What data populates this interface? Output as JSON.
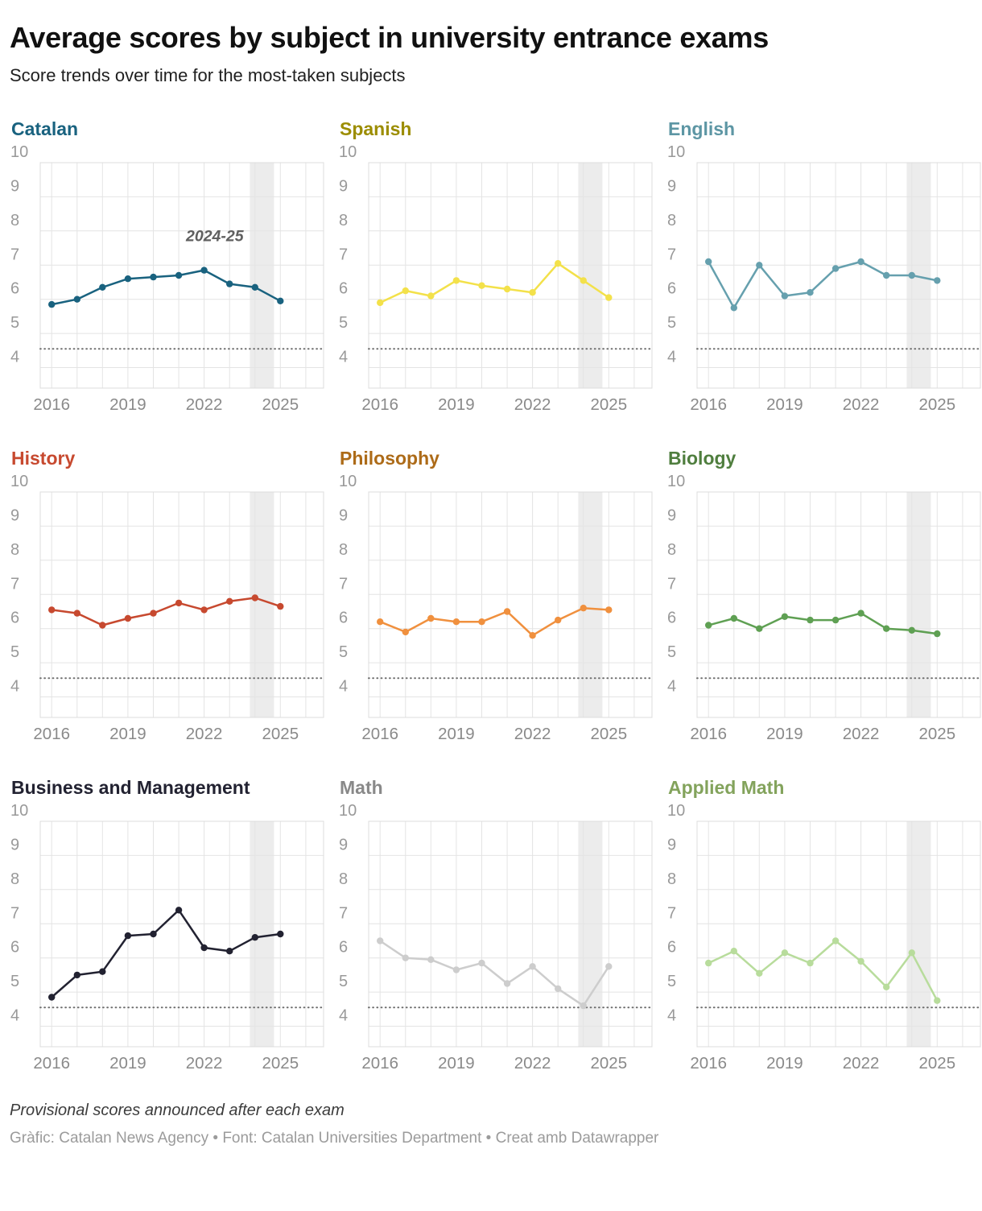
{
  "header": {
    "title": "Average scores by subject in university entrance exams",
    "subtitle": "Score trends over time for the most-taken subjects"
  },
  "footer": {
    "note": "Provisional scores announced after each exam",
    "credit": "Gràfic: Catalan News Agency • Font: Catalan Universities Department • Creat amb Datawrapper"
  },
  "chart_data": {
    "type": "line",
    "x": [
      2016,
      2017,
      2018,
      2019,
      2020,
      2021,
      2022,
      2023,
      2024,
      2025
    ],
    "x_ticks": [
      2016,
      2019,
      2022,
      2025
    ],
    "y_ticks": [
      4,
      5,
      6,
      7,
      8,
      9,
      10
    ],
    "ylim": [
      3.4,
      10
    ],
    "xlim": [
      2015.55,
      2026.7
    ],
    "grid": true,
    "threshold_value": 4.55,
    "highlight_band": {
      "from": 2023.8,
      "to": 2024.75,
      "label": "2024-25"
    },
    "annotation": {
      "panel_index": 0,
      "text": "2024-25",
      "x": 2023.55,
      "y": 7.7
    },
    "colors": {
      "grid_line": "#e4e4e4",
      "plot_border": "#dcdcdc",
      "band_fill": "#ececec",
      "threshold": "#6e6e6e",
      "axis_label": "#999999"
    },
    "panels": [
      {
        "title": "Catalan",
        "title_color": "#19627f",
        "line_color": "#19627f",
        "values": [
          5.85,
          6.0,
          6.35,
          6.6,
          6.65,
          6.7,
          6.85,
          6.45,
          6.35,
          5.95
        ]
      },
      {
        "title": "Spanish",
        "title_color": "#9c8d00",
        "line_color": "#f3e14a",
        "values": [
          5.9,
          6.25,
          6.1,
          6.55,
          6.4,
          6.3,
          6.2,
          7.05,
          6.55,
          6.05
        ]
      },
      {
        "title": "English",
        "title_color": "#5d96a4",
        "line_color": "#66a0ae",
        "values": [
          7.1,
          5.75,
          7.0,
          6.1,
          6.2,
          6.9,
          7.1,
          6.7,
          6.7,
          6.55
        ]
      },
      {
        "title": "History",
        "title_color": "#c7492f",
        "line_color": "#c7492f",
        "values": [
          6.55,
          6.45,
          6.1,
          6.3,
          6.45,
          6.75,
          6.55,
          6.8,
          6.9,
          6.65
        ]
      },
      {
        "title": "Philosophy",
        "title_color": "#ad6b18",
        "line_color": "#f0903e",
        "values": [
          6.2,
          5.9,
          6.3,
          6.2,
          6.2,
          6.5,
          5.8,
          6.25,
          6.6,
          6.55
        ]
      },
      {
        "title": "Biology",
        "title_color": "#4f7e3e",
        "line_color": "#5fa053",
        "values": [
          6.1,
          6.3,
          6.0,
          6.35,
          6.25,
          6.25,
          6.45,
          6.0,
          5.95,
          5.85
        ]
      },
      {
        "title": "Business and Management",
        "title_color": "#222231",
        "line_color": "#222231",
        "values": [
          4.85,
          5.5,
          5.6,
          6.65,
          6.7,
          7.4,
          6.3,
          6.2,
          6.6,
          6.7
        ]
      },
      {
        "title": "Math",
        "title_color": "#898989",
        "line_color": "#cdcdcd",
        "values": [
          6.5,
          6.0,
          5.95,
          5.65,
          5.85,
          5.25,
          5.75,
          5.1,
          4.6,
          5.75
        ]
      },
      {
        "title": "Applied Math",
        "title_color": "#83a35c",
        "line_color": "#b8dc9c",
        "values": [
          5.85,
          6.2,
          5.55,
          6.15,
          5.85,
          6.5,
          5.9,
          5.15,
          6.15,
          4.75
        ]
      }
    ]
  }
}
